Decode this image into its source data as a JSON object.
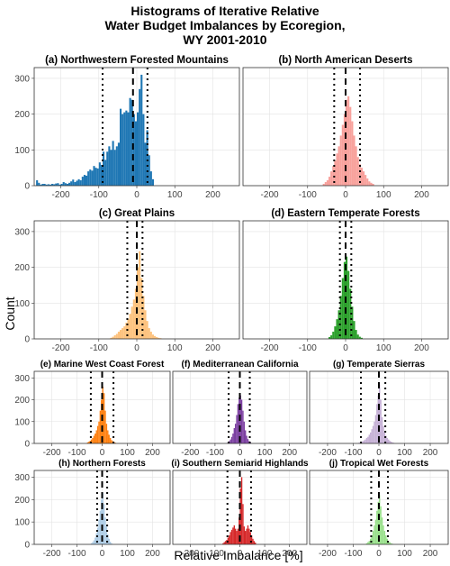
{
  "figure": {
    "title_lines": [
      "Histograms of Iterative Relative",
      "Water Budget Imbalances by Ecoregion,",
      "WY 2001-2010"
    ],
    "xlabel": "Relative Imbalance [%]",
    "ylabel": "Count"
  },
  "chart_data": [
    {
      "type": "histogram",
      "title": "(a) Northwestern Forested Mountains",
      "color": "#1f77b4",
      "xlim": [
        -270,
        270
      ],
      "ylim": [
        0,
        330
      ],
      "xticks": [
        -200,
        -100,
        0,
        100,
        200
      ],
      "yticks": [
        0,
        100,
        200,
        300
      ],
      "bin_width": 5,
      "hist_x": [
        -265,
        -260,
        -255,
        -250,
        -245,
        -240,
        -235,
        -230,
        -225,
        -220,
        -215,
        -210,
        -205,
        -200,
        -195,
        -190,
        -185,
        -180,
        -175,
        -170,
        -165,
        -160,
        -155,
        -150,
        -145,
        -140,
        -135,
        -130,
        -125,
        -120,
        -115,
        -110,
        -105,
        -100,
        -95,
        -90,
        -85,
        -80,
        -75,
        -70,
        -65,
        -60,
        -55,
        -50,
        -45,
        -40,
        -35,
        -30,
        -25,
        -20,
        -15,
        -10,
        -5,
        0,
        5,
        10,
        15,
        20,
        25,
        30,
        35,
        40
      ],
      "counts": [
        15,
        8,
        3,
        5,
        5,
        3,
        4,
        3,
        5,
        4,
        6,
        7,
        3,
        5,
        10,
        7,
        5,
        8,
        12,
        17,
        10,
        14,
        18,
        15,
        25,
        30,
        28,
        40,
        45,
        42,
        55,
        50,
        48,
        65,
        58,
        95,
        72,
        95,
        110,
        100,
        125,
        100,
        110,
        120,
        215,
        200,
        205,
        210,
        205,
        245,
        240,
        200,
        180,
        205,
        270,
        310,
        200,
        120,
        155,
        85,
        40,
        18
      ],
      "vlines": {
        "dashed": [
          -10
        ],
        "dotted": [
          -90,
          28
        ]
      }
    },
    {
      "type": "histogram",
      "title": "(b) North American Deserts",
      "color": "#f8a19c",
      "xlim": [
        -270,
        270
      ],
      "ylim": [
        0,
        330
      ],
      "xticks": [
        -200,
        -100,
        0,
        100,
        200
      ],
      "yticks": [
        0,
        100,
        200,
        300
      ],
      "bin_width": 5,
      "hist_x": [
        -60,
        -55,
        -50,
        -45,
        -40,
        -35,
        -30,
        -25,
        -20,
        -15,
        -10,
        -5,
        0,
        5,
        10,
        15,
        20,
        25,
        30,
        35,
        40,
        45,
        50,
        55,
        60,
        65,
        70
      ],
      "counts": [
        5,
        10,
        15,
        25,
        40,
        55,
        70,
        90,
        110,
        140,
        170,
        200,
        240,
        250,
        220,
        180,
        140,
        110,
        80,
        60,
        50,
        40,
        30,
        20,
        12,
        8,
        5
      ],
      "vlines": {
        "dashed": [
          0
        ],
        "dotted": [
          -30,
          38
        ]
      }
    },
    {
      "type": "histogram",
      "title": "(c) Great Plains",
      "color": "#fdc27d",
      "xlim": [
        -270,
        270
      ],
      "ylim": [
        0,
        330
      ],
      "xticks": [
        -200,
        -100,
        0,
        100,
        200
      ],
      "yticks": [
        0,
        100,
        200,
        300
      ],
      "bin_width": 5,
      "hist_x": [
        -70,
        -65,
        -60,
        -55,
        -50,
        -45,
        -40,
        -35,
        -30,
        -25,
        -20,
        -15,
        -10,
        -5,
        0,
        5,
        10,
        15,
        20,
        25,
        30,
        35,
        40,
        45,
        50,
        55,
        60
      ],
      "counts": [
        3,
        6,
        10,
        14,
        20,
        25,
        30,
        35,
        45,
        55,
        70,
        90,
        110,
        140,
        200,
        245,
        170,
        120,
        80,
        50,
        30,
        20,
        12,
        8,
        5,
        3,
        2
      ],
      "vlines": {
        "dashed": [
          0
        ],
        "dotted": [
          -25,
          15
        ]
      }
    },
    {
      "type": "histogram",
      "title": "(d) Eastern Temperate Forests",
      "color": "#2ca02c",
      "xlim": [
        -270,
        270
      ],
      "ylim": [
        0,
        330
      ],
      "xticks": [
        -200,
        -100,
        0,
        100,
        200
      ],
      "yticks": [
        0,
        100,
        200,
        300
      ],
      "bin_width": 5,
      "hist_x": [
        -45,
        -40,
        -35,
        -30,
        -25,
        -20,
        -15,
        -10,
        -5,
        0,
        5,
        10,
        15,
        20,
        25,
        30,
        35,
        40
      ],
      "counts": [
        5,
        10,
        20,
        35,
        55,
        80,
        120,
        170,
        215,
        230,
        190,
        140,
        90,
        50,
        25,
        12,
        6,
        3
      ],
      "vlines": {
        "dashed": [
          0
        ],
        "dotted": [
          -15,
          15
        ]
      }
    },
    {
      "type": "histogram",
      "title": "(e) Marine West Coast Forest",
      "color": "#ff7f0e",
      "xlim": [
        -270,
        270
      ],
      "ylim": [
        0,
        330
      ],
      "xticks": [
        -200,
        -100,
        0,
        100,
        200
      ],
      "yticks": [
        0,
        100,
        200,
        300
      ],
      "bin_width": 5,
      "hist_x": [
        -60,
        -55,
        -50,
        -45,
        -40,
        -35,
        -30,
        -25,
        -20,
        -15,
        -10,
        -5,
        0,
        5,
        10,
        15,
        20,
        25,
        30,
        35,
        40,
        45,
        50
      ],
      "counts": [
        5,
        8,
        12,
        18,
        25,
        35,
        45,
        60,
        80,
        100,
        150,
        200,
        260,
        230,
        150,
        90,
        60,
        40,
        25,
        15,
        10,
        6,
        3
      ],
      "vlines": {
        "dashed": [
          0
        ],
        "dotted": [
          -45,
          45
        ]
      }
    },
    {
      "type": "histogram",
      "title": "(f) Mediterranean California",
      "color": "#7b3fa0",
      "xlim": [
        -270,
        270
      ],
      "ylim": [
        0,
        330
      ],
      "xticks": [
        -200,
        -100,
        0,
        100,
        200
      ],
      "yticks": [
        0,
        100,
        200,
        300
      ],
      "bin_width": 5,
      "hist_x": [
        -50,
        -45,
        -40,
        -35,
        -30,
        -25,
        -20,
        -15,
        -10,
        -5,
        0,
        5,
        10,
        15,
        20,
        25,
        30,
        35,
        40
      ],
      "counts": [
        5,
        10,
        18,
        30,
        45,
        70,
        90,
        130,
        180,
        210,
        220,
        200,
        150,
        100,
        60,
        35,
        20,
        10,
        5
      ],
      "vlines": {
        "dashed": [
          0
        ],
        "dotted": [
          -45,
          40
        ]
      }
    },
    {
      "type": "histogram",
      "title": "(g) Temperate Sierras",
      "color": "#c5b0d5",
      "xlim": [
        -270,
        270
      ],
      "ylim": [
        0,
        330
      ],
      "xticks": [
        -200,
        -100,
        0,
        100,
        200
      ],
      "yticks": [
        0,
        100,
        200,
        300
      ],
      "bin_width": 5,
      "hist_x": [
        -80,
        -75,
        -70,
        -65,
        -60,
        -55,
        -50,
        -45,
        -40,
        -35,
        -30,
        -25,
        -20,
        -15,
        -10,
        -5,
        0,
        5,
        10,
        15,
        20,
        25,
        30,
        35,
        40,
        45,
        50,
        55
      ],
      "counts": [
        3,
        5,
        8,
        10,
        14,
        18,
        25,
        30,
        40,
        50,
        65,
        80,
        100,
        130,
        180,
        220,
        270,
        200,
        120,
        80,
        50,
        35,
        25,
        18,
        12,
        8,
        5,
        3
      ],
      "vlines": {
        "dashed": [
          0
        ],
        "dotted": [
          -70,
          25
        ]
      }
    },
    {
      "type": "histogram",
      "title": "(h) Northern Forests",
      "color": "#aecde6",
      "xlim": [
        -270,
        270
      ],
      "ylim": [
        0,
        330
      ],
      "xticks": [
        -200,
        -100,
        0,
        100,
        200
      ],
      "yticks": [
        0,
        100,
        200,
        300
      ],
      "bin_width": 5,
      "hist_x": [
        -45,
        -40,
        -35,
        -30,
        -25,
        -20,
        -15,
        -10,
        -5,
        0,
        5,
        10,
        15,
        20,
        25,
        30,
        35
      ],
      "counts": [
        5,
        10,
        18,
        30,
        50,
        75,
        110,
        150,
        200,
        230,
        180,
        120,
        80,
        45,
        25,
        12,
        5
      ],
      "vlines": {
        "dashed": [
          0
        ],
        "dotted": [
          -20,
          20
        ]
      }
    },
    {
      "type": "histogram",
      "title": "(i) Southern Semiarid Highlands",
      "color": "#d62728",
      "xlim": [
        -270,
        270
      ],
      "ylim": [
        0,
        330
      ],
      "xticks": [
        -200,
        -100,
        0,
        100,
        200
      ],
      "yticks": [
        0,
        100,
        200,
        300
      ],
      "bin_width": 5,
      "hist_x": [
        -70,
        -65,
        -60,
        -55,
        -50,
        -45,
        -40,
        -35,
        -30,
        -25,
        -20,
        -15,
        -10,
        -5,
        0,
        5,
        10,
        15,
        20,
        25,
        30,
        35,
        40,
        45,
        50,
        55,
        60
      ],
      "counts": [
        5,
        10,
        15,
        20,
        30,
        40,
        55,
        65,
        75,
        85,
        70,
        60,
        70,
        120,
        250,
        300,
        180,
        80,
        60,
        70,
        85,
        70,
        55,
        40,
        25,
        15,
        8
      ],
      "vlines": {
        "dashed": [
          0
        ],
        "dotted": [
          -50,
          45
        ]
      }
    },
    {
      "type": "histogram",
      "title": "(j) Tropical Wet Forests",
      "color": "#98df8a",
      "xlim": [
        -270,
        270
      ],
      "ylim": [
        0,
        330
      ],
      "xticks": [
        -200,
        -100,
        0,
        100,
        200
      ],
      "yticks": [
        0,
        100,
        200,
        300
      ],
      "bin_width": 5,
      "hist_x": [
        -50,
        -45,
        -40,
        -35,
        -30,
        -25,
        -20,
        -15,
        -10,
        -5,
        0,
        5,
        10,
        15,
        20,
        25,
        30,
        35,
        40,
        45,
        50
      ],
      "counts": [
        5,
        10,
        15,
        25,
        40,
        60,
        85,
        110,
        150,
        190,
        220,
        170,
        120,
        85,
        60,
        40,
        25,
        15,
        10,
        5,
        3
      ],
      "vlines": {
        "dashed": [
          0
        ],
        "dotted": [
          -30,
          35
        ]
      }
    }
  ]
}
